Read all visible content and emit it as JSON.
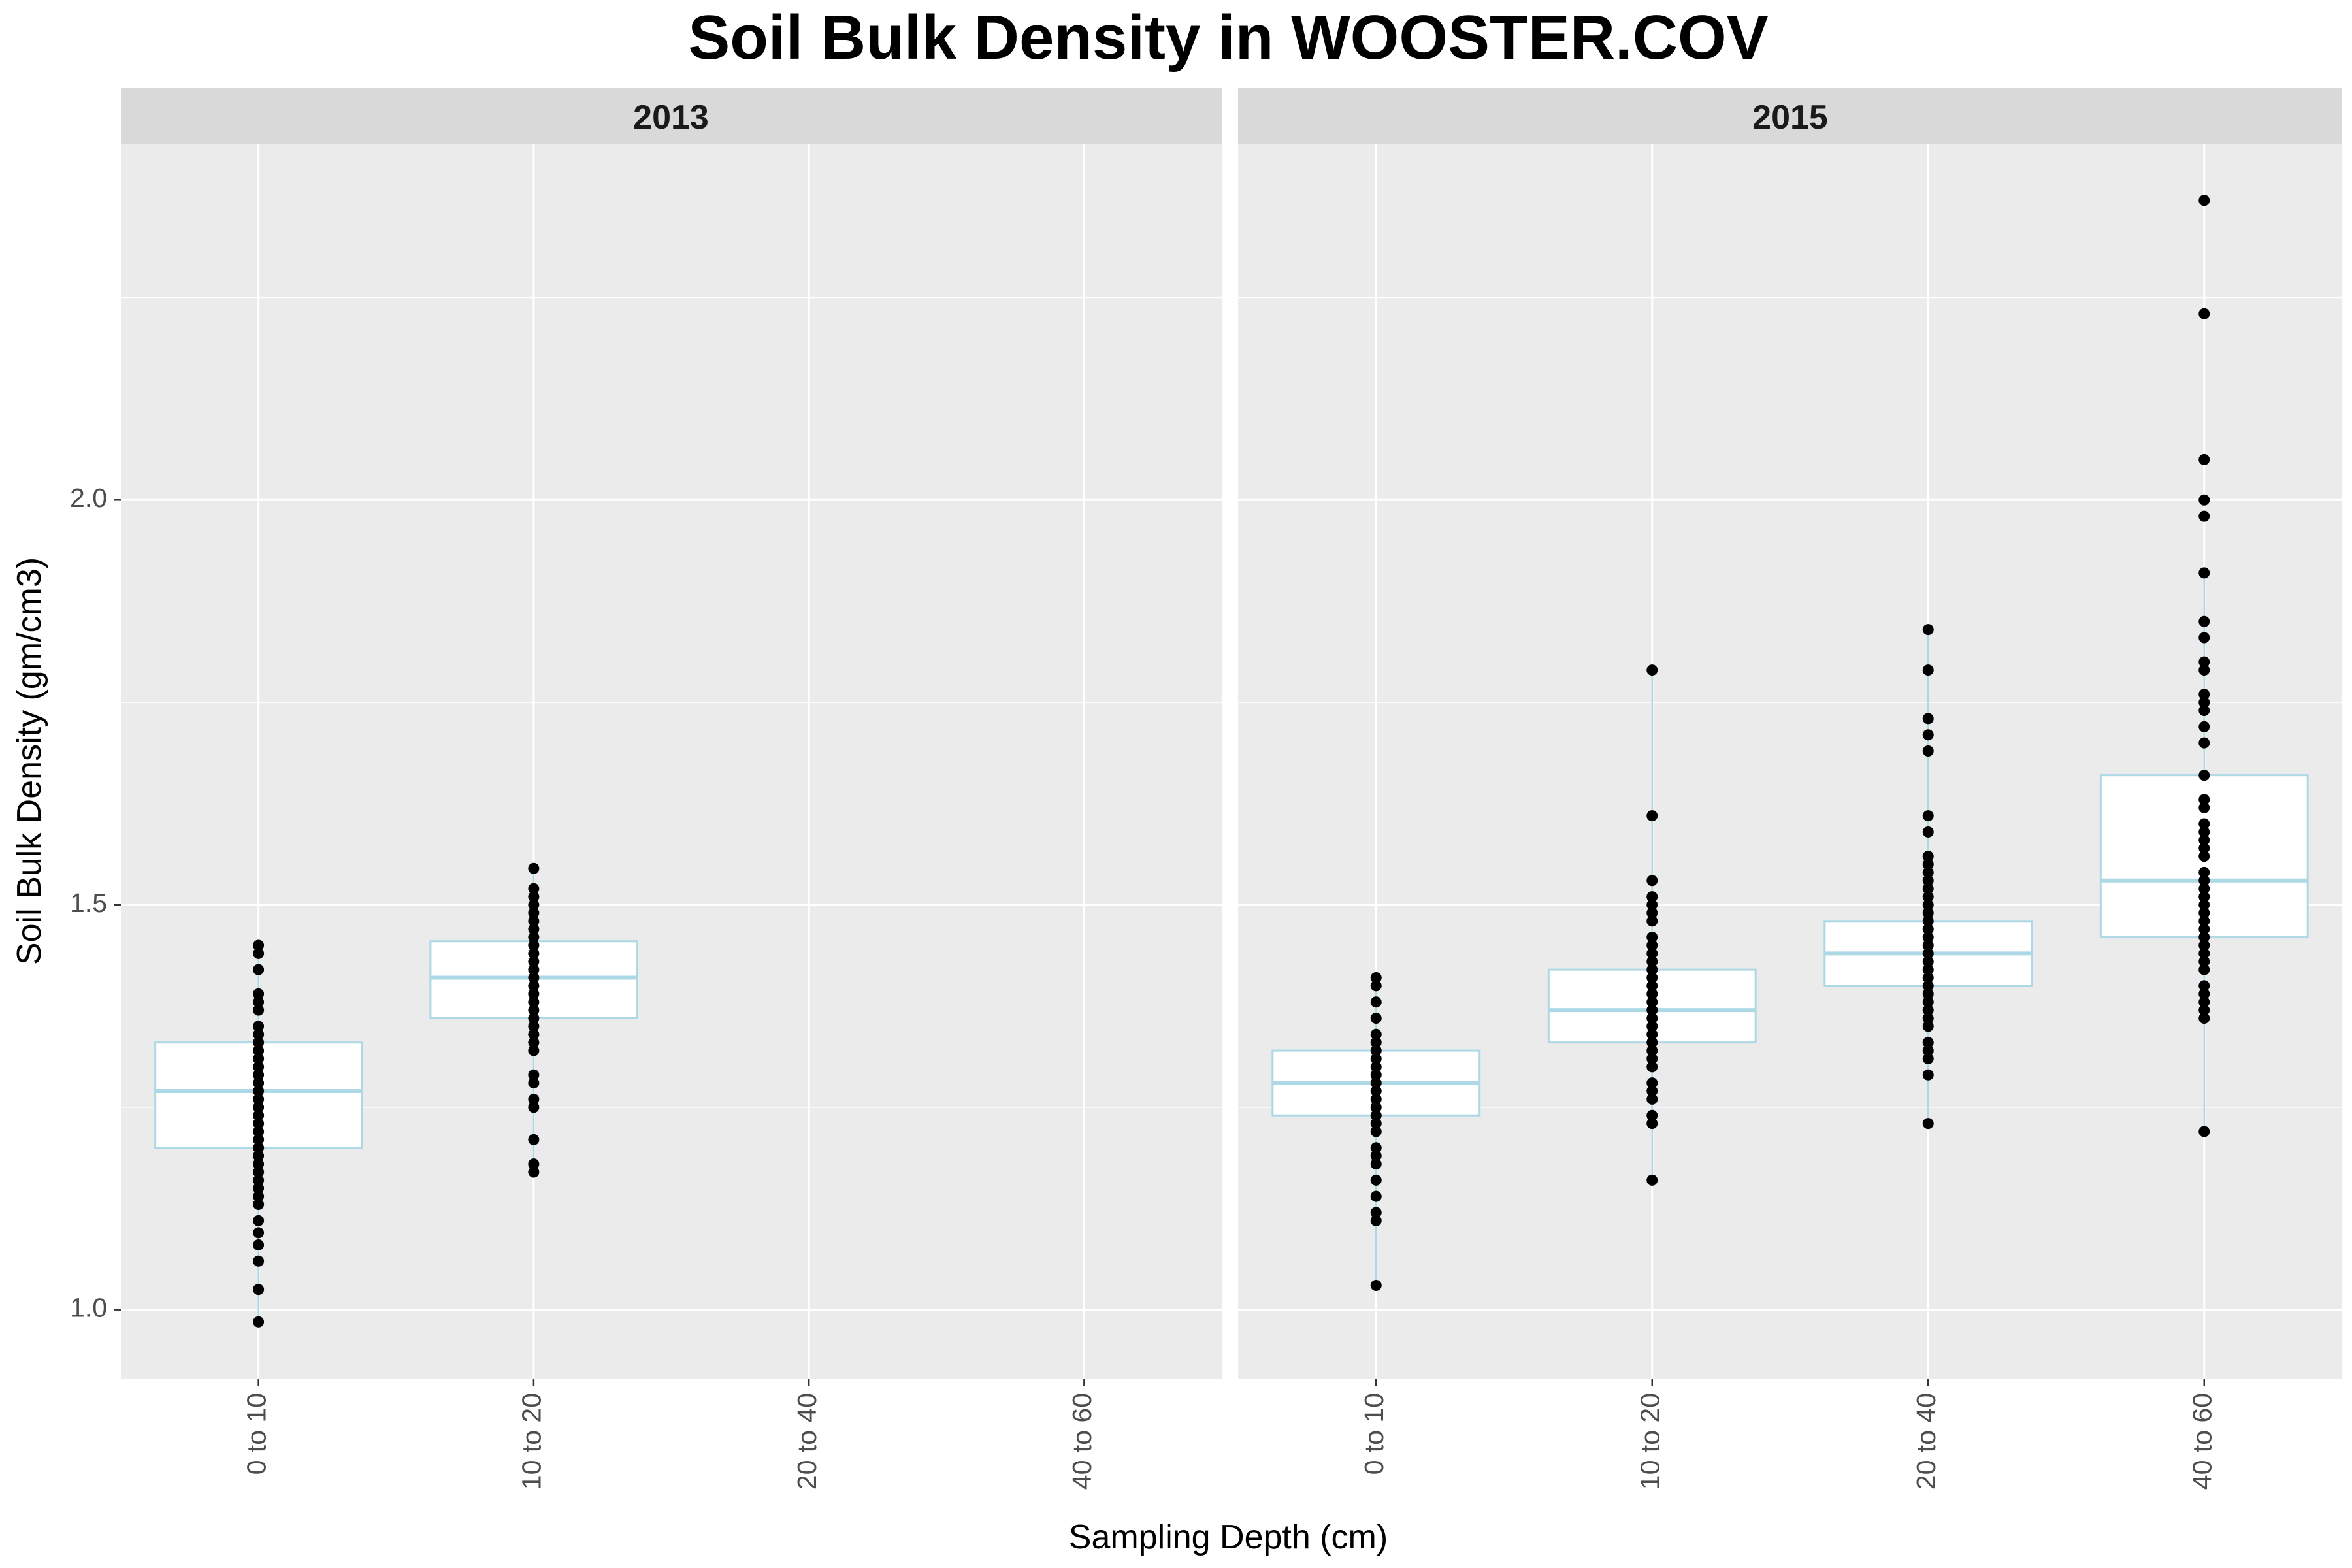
{
  "chart_data": {
    "type": "box",
    "title": "Soil Bulk Density in WOOSTER.COV",
    "xlabel": "Sampling Depth (cm)",
    "ylabel": "Soil Bulk Density (gm/cm3)",
    "categories": [
      "0 to 10",
      "10 to 20",
      "20 to 40",
      "40 to 60"
    ],
    "ylim": [
      0.915,
      2.44
    ],
    "yticks": [
      1.0,
      1.5,
      2.0
    ],
    "ytick_labels": [
      "1.0",
      "1.5",
      "2.0"
    ],
    "grid": true,
    "colors": {
      "box_outline": "#add8e6",
      "box_fill": "#ffffff",
      "points": "#000000",
      "panel_bg": "#ebebeb",
      "strip_bg": "#d9d9d9",
      "grid": "#ffffff"
    },
    "panels": [
      {
        "label": "2013",
        "boxes": [
          {
            "category": "0 to 10",
            "q1": 1.2,
            "median": 1.27,
            "q3": 1.33,
            "whisker_low": 0.98,
            "whisker_high": 1.45,
            "points": [
              0.985,
              1.025,
              1.06,
              1.08,
              1.095,
              1.11,
              1.13,
              1.14,
              1.15,
              1.16,
              1.17,
              1.18,
              1.19,
              1.2,
              1.21,
              1.22,
              1.23,
              1.24,
              1.25,
              1.26,
              1.27,
              1.28,
              1.29,
              1.3,
              1.31,
              1.32,
              1.33,
              1.34,
              1.35,
              1.37,
              1.38,
              1.39,
              1.42,
              1.44,
              1.45
            ]
          },
          {
            "category": "10 to 20",
            "q1": 1.36,
            "median": 1.41,
            "q3": 1.455,
            "whisker_low": 1.17,
            "whisker_high": 1.545,
            "points": [
              1.17,
              1.18,
              1.21,
              1.25,
              1.26,
              1.28,
              1.29,
              1.32,
              1.33,
              1.34,
              1.35,
              1.36,
              1.37,
              1.38,
              1.39,
              1.4,
              1.41,
              1.42,
              1.43,
              1.44,
              1.45,
              1.46,
              1.47,
              1.48,
              1.49,
              1.5,
              1.51,
              1.52,
              1.545
            ]
          }
        ]
      },
      {
        "label": "2015",
        "boxes": [
          {
            "category": "0 to 10",
            "q1": 1.24,
            "median": 1.28,
            "q3": 1.32,
            "whisker_low": 1.03,
            "whisker_high": 1.41,
            "points": [
              1.03,
              1.11,
              1.12,
              1.14,
              1.16,
              1.18,
              1.19,
              1.2,
              1.22,
              1.23,
              1.24,
              1.25,
              1.26,
              1.27,
              1.28,
              1.29,
              1.3,
              1.31,
              1.32,
              1.33,
              1.34,
              1.36,
              1.38,
              1.4,
              1.41
            ]
          },
          {
            "category": "10 to 20",
            "q1": 1.33,
            "median": 1.37,
            "q3": 1.42,
            "whisker_low": 1.16,
            "whisker_high": 1.79,
            "points": [
              1.16,
              1.23,
              1.24,
              1.26,
              1.27,
              1.28,
              1.3,
              1.31,
              1.32,
              1.33,
              1.34,
              1.35,
              1.36,
              1.37,
              1.38,
              1.39,
              1.4,
              1.41,
              1.42,
              1.43,
              1.44,
              1.45,
              1.46,
              1.48,
              1.49,
              1.5,
              1.51,
              1.53,
              1.61,
              1.79
            ]
          },
          {
            "category": "20 to 40",
            "q1": 1.4,
            "median": 1.44,
            "q3": 1.48,
            "whisker_low": 1.23,
            "whisker_high": 1.84,
            "points": [
              1.23,
              1.29,
              1.31,
              1.32,
              1.33,
              1.35,
              1.36,
              1.37,
              1.38,
              1.39,
              1.4,
              1.41,
              1.42,
              1.43,
              1.44,
              1.45,
              1.46,
              1.47,
              1.48,
              1.49,
              1.5,
              1.51,
              1.52,
              1.53,
              1.54,
              1.55,
              1.56,
              1.59,
              1.61,
              1.69,
              1.71,
              1.73,
              1.79,
              1.84
            ]
          },
          {
            "category": "40 to 60",
            "q1": 1.46,
            "median": 1.53,
            "q3": 1.66,
            "whisker_low": 1.22,
            "whisker_high": 1.91,
            "points": [
              1.22,
              1.36,
              1.37,
              1.38,
              1.39,
              1.4,
              1.42,
              1.43,
              1.44,
              1.45,
              1.46,
              1.47,
              1.48,
              1.49,
              1.5,
              1.51,
              1.52,
              1.53,
              1.54,
              1.56,
              1.57,
              1.58,
              1.59,
              1.6,
              1.62,
              1.63,
              1.66,
              1.7,
              1.72,
              1.74,
              1.75,
              1.76,
              1.79,
              1.8,
              1.83,
              1.85,
              1.91,
              1.98,
              2.0,
              2.05,
              2.23,
              2.37
            ]
          }
        ]
      }
    ]
  }
}
